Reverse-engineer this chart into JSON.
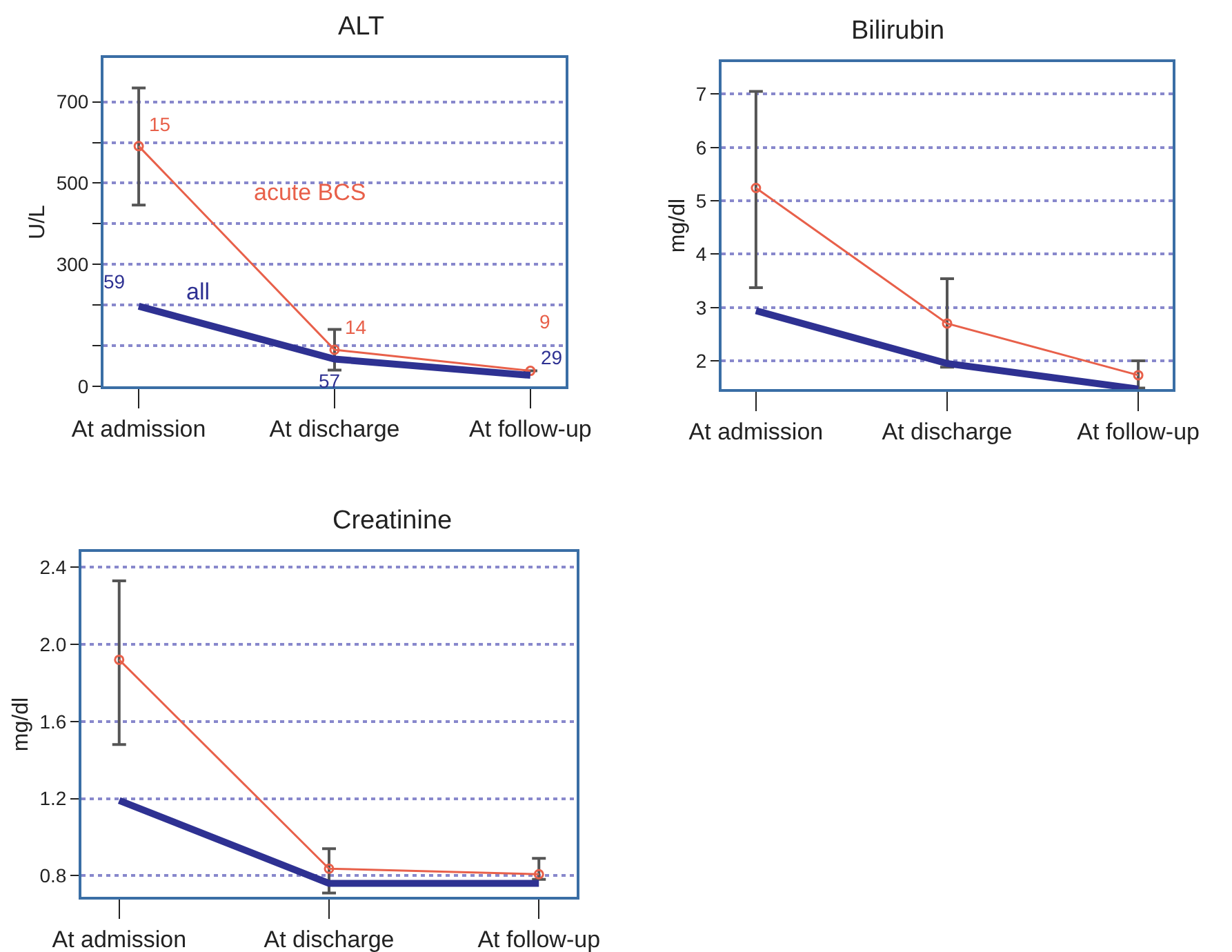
{
  "chart_data": [
    {
      "type": "line",
      "title": "ALT",
      "ylabel": "U/L",
      "categories": [
        "At admission",
        "At discharge",
        "At follow-up"
      ],
      "ylim": [
        0,
        808
      ],
      "yticks": [
        0,
        {
          "value": 100,
          "label": null
        },
        {
          "value": 200,
          "label": null
        },
        300,
        {
          "value": 400,
          "label": null
        },
        500,
        {
          "value": 600,
          "label": null
        },
        700
      ],
      "grid": "y",
      "annotations": [
        {
          "text": "15",
          "x": "At admission",
          "y": 591
        },
        {
          "text": "14",
          "x": "At discharge",
          "y": 90
        },
        {
          "text": "9",
          "x": "At follow-up",
          "y": 38
        },
        {
          "text": "59",
          "x": "At admission",
          "y": 197
        },
        {
          "text": "57",
          "x": "At discharge",
          "y": 67
        },
        {
          "text": "29",
          "x": "At follow-up",
          "y": 27
        }
      ],
      "series": [
        {
          "name": "acute BCS",
          "color": "#e8604a",
          "marker": "circle",
          "values": [
            591,
            90,
            38
          ],
          "errors": [
            [
              446,
              734
            ],
            50,
            null
          ]
        },
        {
          "name": "all",
          "color": "#2e3192",
          "marker": "none",
          "values": [
            197,
            67,
            27
          ]
        }
      ]
    },
    {
      "type": "line",
      "title": "Bilirubin",
      "ylabel": "mg/dl",
      "categories": [
        "At admission",
        "At discharge",
        "At follow-up"
      ],
      "ylim": [
        1.47,
        7.6
      ],
      "yticks": [
        2,
        3,
        4,
        5,
        6,
        7
      ],
      "grid": "y",
      "series": [
        {
          "color": "#e8604a",
          "marker": "circle",
          "values": [
            5.24,
            2.7,
            1.73
          ],
          "errors": [
            [
              3.37,
              7.05
            ],
            [
              1.88,
              3.54
            ],
            [
              1.49,
              2.0
            ]
          ]
        },
        {
          "color": "#2e3192",
          "marker": "none",
          "values": [
            2.94,
            1.95,
            1.47
          ]
        }
      ]
    },
    {
      "type": "line",
      "title": "Creatinine",
      "ylabel": "mg/dl",
      "categories": [
        "At admission",
        "At discharge",
        "At follow-up"
      ],
      "ylim": [
        0.69,
        2.48
      ],
      "yticks": [
        0.8,
        1.2,
        1.6,
        {
          "value": 2,
          "label": "2.0"
        },
        2.4
      ],
      "grid": "y",
      "series": [
        {
          "color": "#e8604a",
          "marker": "circle",
          "values": [
            1.92,
            0.836,
            0.807
          ],
          "errors": [
            [
              1.48,
              2.33
            ],
            [
              0.71,
              0.94
            ],
            [
              0.78,
              0.89
            ]
          ]
        },
        {
          "color": "#2e3192",
          "marker": "none",
          "values": [
            1.19,
            0.76,
            0.76
          ]
        }
      ]
    }
  ]
}
